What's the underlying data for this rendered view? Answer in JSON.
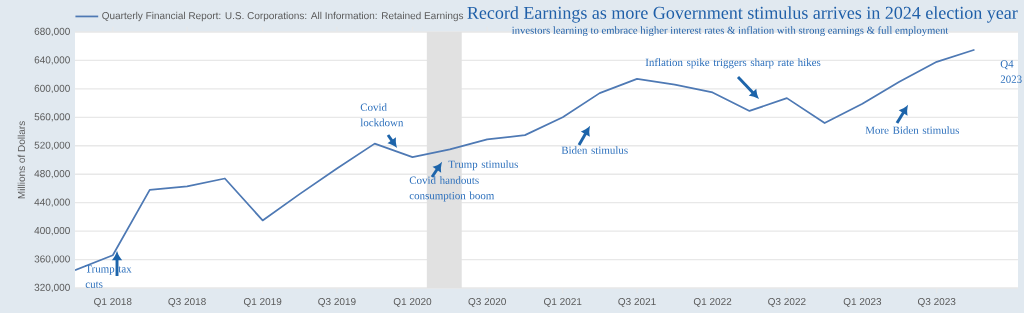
{
  "chart_data": {
    "type": "line",
    "title": "Record Earnings as more Government stimulus arrives in 2024 election year",
    "subtitle": "investors learning to embrace higher interest rates & inflation with strong earnings & full employment",
    "ylabel": "Millions of Dollars",
    "x": [
      "2017-10",
      "2018-01",
      "2018-04",
      "2018-07",
      "2018-10",
      "2019-01",
      "2019-04",
      "2019-07",
      "2019-10",
      "2020-01",
      "2020-04",
      "2020-07",
      "2020-10",
      "2021-01",
      "2021-04",
      "2021-07",
      "2021-10",
      "2022-01",
      "2022-04",
      "2022-07",
      "2022-10",
      "2023-01",
      "2023-04",
      "2023-07",
      "2023-10"
    ],
    "series": [
      {
        "name": "Quarterly Financial Report: U.S. Corporations: All Information: Retained Earnings",
        "color": "#4e79b4",
        "values": [
          345000,
          366000,
          458000,
          463000,
          474000,
          415000,
          452000,
          488000,
          523000,
          504000,
          515000,
          529000,
          535000,
          560000,
          594000,
          614000,
          606000,
          595000,
          569000,
          587000,
          552000,
          579000,
          610000,
          638000,
          655000
        ]
      }
    ],
    "xlim": [
      "2017-10",
      "2024-01-15"
    ],
    "xticks": [
      {
        "value": "2018-01",
        "label": "Q1 2018"
      },
      {
        "value": "2018-07",
        "label": "Q3 2018"
      },
      {
        "value": "2019-01",
        "label": "Q1 2019"
      },
      {
        "value": "2019-07",
        "label": "Q3 2019"
      },
      {
        "value": "2020-01",
        "label": "Q1 2020"
      },
      {
        "value": "2020-07",
        "label": "Q3 2020"
      },
      {
        "value": "2021-01",
        "label": "Q1 2021"
      },
      {
        "value": "2021-07",
        "label": "Q3 2021"
      },
      {
        "value": "2022-01",
        "label": "Q1 2022"
      },
      {
        "value": "2022-07",
        "label": "Q3 2022"
      },
      {
        "value": "2023-01",
        "label": "Q1 2023"
      },
      {
        "value": "2023-07",
        "label": "Q3 2023"
      }
    ],
    "ylim": [
      320000,
      680000
    ],
    "yticks": [
      {
        "value": 320000,
        "label": "320,000"
      },
      {
        "value": 360000,
        "label": "360,000"
      },
      {
        "value": 400000,
        "label": "400,000"
      },
      {
        "value": 440000,
        "label": "440,000"
      },
      {
        "value": 480000,
        "label": "480,000"
      },
      {
        "value": 520000,
        "label": "520,000"
      },
      {
        "value": 560000,
        "label": "560,000"
      },
      {
        "value": 600000,
        "label": "600,000"
      },
      {
        "value": 640000,
        "label": "640,000"
      },
      {
        "value": 680000,
        "label": "680,000"
      }
    ],
    "grid": "y",
    "legend": "top left",
    "bands": [
      {
        "axis": "x",
        "from": "2020-02-05",
        "to": "2020-04-30",
        "color": "#e1e1e1"
      }
    ],
    "annotations": [
      "Trump tax cuts",
      "Covid lockdown",
      "Trump stimulus",
      "Covid handouts consumption boom",
      "Biden stimulus",
      "Inflation spike triggers sharp rate hikes",
      "More Biden stimulus",
      "Q4 2023"
    ]
  }
}
